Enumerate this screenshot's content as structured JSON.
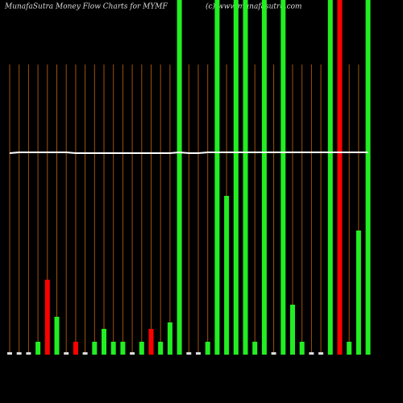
{
  "chart_data": {
    "type": "bar",
    "title": "MunafaSutra  Money Flow  Charts for MYMF",
    "watermark": "(c) www.munafasutra.com",
    "ylim": [
      0,
      440
    ],
    "values": [
      3,
      3,
      3,
      16,
      93,
      47,
      3,
      16,
      3,
      16,
      32,
      16,
      16,
      3,
      16,
      32,
      16,
      40,
      440,
      3,
      3,
      16,
      440,
      197,
      440,
      440,
      16,
      440,
      3,
      440,
      62,
      16,
      3,
      3,
      440,
      440,
      16,
      154,
      440
    ],
    "colors": [
      "#dddddd",
      "#dddddd",
      "#dddddd",
      "#22ee22",
      "#ff0000",
      "#22ee22",
      "#dddddd",
      "#ff0000",
      "#dddddd",
      "#22ee22",
      "#22ee22",
      "#22ee22",
      "#22ee22",
      "#dddddd",
      "#22ee22",
      "#ff0000",
      "#22ee22",
      "#22ee22",
      "#22ee22",
      "#dddddd",
      "#dddddd",
      "#22ee22",
      "#22ee22",
      "#22ee22",
      "#22ee22",
      "#22ee22",
      "#22ee22",
      "#22ee22",
      "#dddddd",
      "#22ee22",
      "#22ee22",
      "#22ee22",
      "#dddddd",
      "#dddddd",
      "#22ee22",
      "#ff0000",
      "#22ee22",
      "#22ee22",
      "#22ee22"
    ],
    "line": {
      "color": "#ffffff",
      "values": [
        250,
        251,
        251,
        251,
        251,
        251,
        251,
        250,
        250,
        250,
        250,
        250,
        250,
        250,
        250,
        250,
        250,
        250,
        251,
        250,
        250,
        251,
        251,
        251,
        251,
        251,
        251,
        251,
        251,
        251,
        251,
        251,
        251,
        251,
        251,
        251,
        251,
        251,
        251
      ]
    },
    "grid_color": "#a0520a"
  }
}
